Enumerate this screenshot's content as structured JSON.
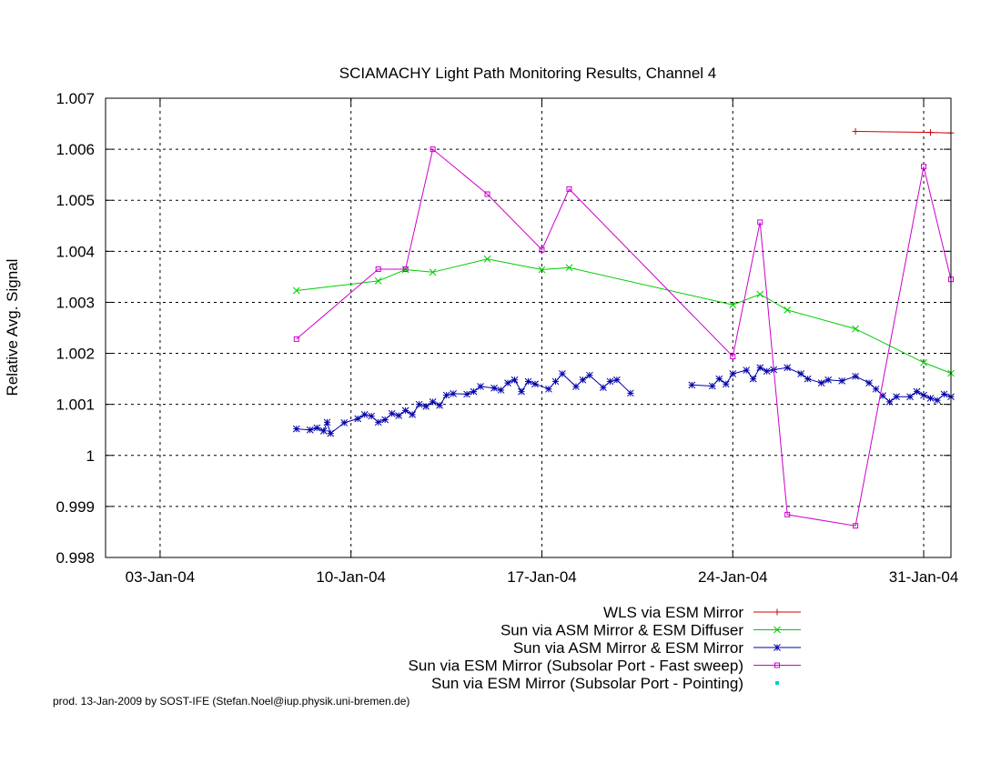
{
  "chart_data": {
    "type": "line",
    "title": "SCIAMACHY Light Path Monitoring Results, Channel 4",
    "xlabel": "",
    "ylabel": "Relative Avg. Signal",
    "x_type": "date",
    "xlim": [
      "2004-01-01",
      "2004-02-01"
    ],
    "ylim": [
      0.998,
      1.007
    ],
    "grid": true,
    "legend_position": "bottom",
    "x_ticks": [
      {
        "date": "2004-01-03",
        "label": "03-Jan-04"
      },
      {
        "date": "2004-01-10",
        "label": "10-Jan-04"
      },
      {
        "date": "2004-01-17",
        "label": "17-Jan-04"
      },
      {
        "date": "2004-01-24",
        "label": "24-Jan-04"
      },
      {
        "date": "2004-01-31",
        "label": "31-Jan-04"
      }
    ],
    "y_ticks": [
      {
        "value": 0.998,
        "label": "0.998"
      },
      {
        "value": 0.999,
        "label": "0.999"
      },
      {
        "value": 1.0,
        "label": "1"
      },
      {
        "value": 1.001,
        "label": "1.001"
      },
      {
        "value": 1.002,
        "label": "1.002"
      },
      {
        "value": 1.003,
        "label": "1.003"
      },
      {
        "value": 1.004,
        "label": "1.004"
      },
      {
        "value": 1.005,
        "label": "1.005"
      },
      {
        "value": 1.006,
        "label": "1.006"
      },
      {
        "value": 1.007,
        "label": "1.007"
      }
    ],
    "series": [
      {
        "name": "WLS via ESM Mirror",
        "color": "#cc0000",
        "marker": "plus",
        "connect": true,
        "points": [
          [
            "2004-01-28 12:00",
            1.00635
          ],
          [
            "2004-01-31 06:00",
            1.00633
          ],
          [
            "2004-02-01 00:00",
            1.00632
          ]
        ]
      },
      {
        "name": "Sun via ASM Mirror & ESM Diffuser",
        "color": "#00cc00",
        "marker": "x",
        "connect": true,
        "points": [
          [
            "2004-01-08 00:00",
            1.00323
          ],
          [
            "2004-01-11 00:00",
            1.00342
          ],
          [
            "2004-01-12 00:00",
            1.00364
          ],
          [
            "2004-01-13 00:00",
            1.00359
          ],
          [
            "2004-01-15 00:00",
            1.00385
          ],
          [
            "2004-01-17 00:00",
            1.00364
          ],
          [
            "2004-01-18 00:00",
            1.00368
          ],
          [
            "2004-01-24 00:00",
            1.00295
          ],
          [
            "2004-01-25 00:00",
            1.00316
          ],
          [
            "2004-01-26 00:00",
            1.00285
          ],
          [
            "2004-01-28 12:00",
            1.00248
          ],
          [
            "2004-01-31 00:00",
            1.00182
          ],
          [
            "2004-02-01 00:00",
            1.00161
          ]
        ]
      },
      {
        "name": "Sun via ASM Mirror & ESM Mirror",
        "color": "#0000aa",
        "marker": "star",
        "connect": true,
        "segments": [
          [
            [
              "2004-01-08 00:00",
              1.00052
            ],
            [
              "2004-01-08 12:00",
              1.0005
            ],
            [
              "2004-01-08 18:00",
              1.00054
            ],
            [
              "2004-01-09 00:00",
              1.00048
            ],
            [
              "2004-01-09 03:00",
              1.00065
            ],
            [
              "2004-01-09 06:00",
              1.00043
            ],
            [
              "2004-01-09 18:00",
              1.00064
            ],
            [
              "2004-01-10 06:00",
              1.00072
            ],
            [
              "2004-01-10 12:00",
              1.0008
            ],
            [
              "2004-01-10 18:00",
              1.00077
            ],
            [
              "2004-01-11 00:00",
              1.00065
            ],
            [
              "2004-01-11 06:00",
              1.0007
            ],
            [
              "2004-01-11 12:00",
              1.00082
            ],
            [
              "2004-01-11 18:00",
              1.00078
            ],
            [
              "2004-01-12 00:00",
              1.00088
            ],
            [
              "2004-01-12 06:00",
              1.0008
            ],
            [
              "2004-01-12 12:00",
              1.001
            ],
            [
              "2004-01-12 18:00",
              1.00096
            ],
            [
              "2004-01-13 00:00",
              1.00105
            ],
            [
              "2004-01-13 06:00",
              1.00098
            ],
            [
              "2004-01-13 12:00",
              1.00118
            ],
            [
              "2004-01-13 18:00",
              1.00121
            ],
            [
              "2004-01-14 06:00",
              1.0012
            ],
            [
              "2004-01-14 12:00",
              1.00125
            ],
            [
              "2004-01-14 18:00",
              1.00135
            ],
            [
              "2004-01-15 06:00",
              1.00132
            ],
            [
              "2004-01-15 12:00",
              1.00128
            ],
            [
              "2004-01-15 18:00",
              1.00142
            ],
            [
              "2004-01-16 00:00",
              1.00148
            ],
            [
              "2004-01-16 06:00",
              1.00125
            ],
            [
              "2004-01-16 12:00",
              1.00145
            ],
            [
              "2004-01-16 18:00",
              1.0014
            ],
            [
              "2004-01-17 06:00",
              1.0013
            ],
            [
              "2004-01-17 12:00",
              1.00145
            ],
            [
              "2004-01-17 18:00",
              1.0016
            ],
            [
              "2004-01-18 06:00",
              1.00135
            ],
            [
              "2004-01-18 12:00",
              1.00148
            ],
            [
              "2004-01-18 18:00",
              1.00157
            ],
            [
              "2004-01-19 06:00",
              1.00133
            ],
            [
              "2004-01-19 12:00",
              1.00145
            ],
            [
              "2004-01-19 18:00",
              1.00148
            ],
            [
              "2004-01-20 06:00",
              1.00122
            ]
          ],
          [
            [
              "2004-01-22 12:00",
              1.00138
            ],
            [
              "2004-01-23 06:00",
              1.00136
            ],
            [
              "2004-01-23 12:00",
              1.0015
            ],
            [
              "2004-01-23 18:00",
              1.0014
            ],
            [
              "2004-01-24 00:00",
              1.0016
            ],
            [
              "2004-01-24 12:00",
              1.00167
            ],
            [
              "2004-01-24 18:00",
              1.0015
            ],
            [
              "2004-01-25 00:00",
              1.00172
            ],
            [
              "2004-01-25 06:00",
              1.00165
            ],
            [
              "2004-01-25 12:00",
              1.00168
            ],
            [
              "2004-01-26 00:00",
              1.00172
            ],
            [
              "2004-01-26 12:00",
              1.0016
            ],
            [
              "2004-01-26 18:00",
              1.0015
            ],
            [
              "2004-01-27 06:00",
              1.00142
            ],
            [
              "2004-01-27 12:00",
              1.00148
            ],
            [
              "2004-01-28 00:00",
              1.00146
            ],
            [
              "2004-01-28 12:00",
              1.00155
            ],
            [
              "2004-01-29 00:00",
              1.00142
            ],
            [
              "2004-01-29 06:00",
              1.0013
            ],
            [
              "2004-01-29 12:00",
              1.00117
            ],
            [
              "2004-01-29 18:00",
              1.00105
            ],
            [
              "2004-01-30 00:00",
              1.00115
            ],
            [
              "2004-01-30 12:00",
              1.00115
            ],
            [
              "2004-01-30 18:00",
              1.00125
            ],
            [
              "2004-01-31 00:00",
              1.00118
            ],
            [
              "2004-01-31 06:00",
              1.00112
            ],
            [
              "2004-01-31 12:00",
              1.00108
            ],
            [
              "2004-01-31 18:00",
              1.0012
            ],
            [
              "2004-02-01 00:00",
              1.00115
            ]
          ]
        ]
      },
      {
        "name": "Sun via ESM Mirror (Subsolar Port - Fast sweep)",
        "color": "#cc00cc",
        "marker": "square",
        "connect": true,
        "points": [
          [
            "2004-01-08 00:00",
            1.00228
          ],
          [
            "2004-01-11 00:00",
            1.00365
          ],
          [
            "2004-01-12 00:00",
            1.00365
          ],
          [
            "2004-01-13 00:00",
            1.006
          ],
          [
            "2004-01-15 00:00",
            1.00512
          ],
          [
            "2004-01-17 00:00",
            1.00403
          ],
          [
            "2004-01-18 00:00",
            1.00522
          ],
          [
            "2004-01-24 00:00",
            1.00194
          ],
          [
            "2004-01-25 00:00",
            1.00457
          ],
          [
            "2004-01-26 00:00",
            0.99884
          ],
          [
            "2004-01-28 12:00",
            0.99862
          ],
          [
            "2004-01-31 00:00",
            1.00566
          ],
          [
            "2004-02-01 00:00",
            1.00345
          ]
        ]
      },
      {
        "name": "Sun via ESM Mirror (Subsolar Port - Pointing)",
        "color": "#00cccc",
        "marker": "dot",
        "connect": false,
        "points": []
      }
    ]
  },
  "footer": "prod. 13-Jan-2009 by SOST-IFE (Stefan.Noel@iup.physik.uni-bremen.de)"
}
